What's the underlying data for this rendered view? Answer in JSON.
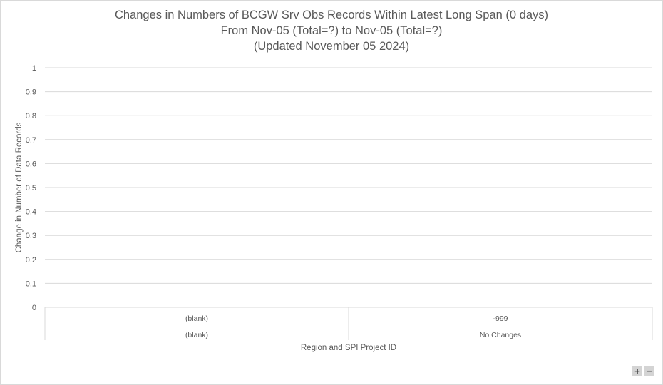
{
  "chart_data": {
    "type": "bar",
    "title_lines": [
      "Changes in Numbers of BCGW Srv Obs Records Within Latest Long Span (0 days)",
      "From Nov-05 (Total=?) to Nov-05 (Total=?)",
      "(Updated November 05 2024)"
    ],
    "ylabel": "Change in Number of Data Records",
    "xlabel": "Region and SPI Project ID",
    "ylim": [
      0,
      1
    ],
    "yticks": [
      "0",
      "0.1",
      "0.2",
      "0.3",
      "0.4",
      "0.5",
      "0.6",
      "0.7",
      "0.8",
      "0.9",
      "1"
    ],
    "grid": true,
    "categories": [
      {
        "inner": "(blank)",
        "outer": "(blank)"
      },
      {
        "inner": "-999",
        "outer": "No Changes"
      }
    ],
    "series": [
      {
        "values": [
          null,
          null
        ]
      }
    ],
    "colors": {
      "grid": "#d9d9d9",
      "text": "#595959",
      "bar": "#4472c4"
    }
  },
  "controls": {
    "zoom_in": "+",
    "zoom_out": "−"
  }
}
